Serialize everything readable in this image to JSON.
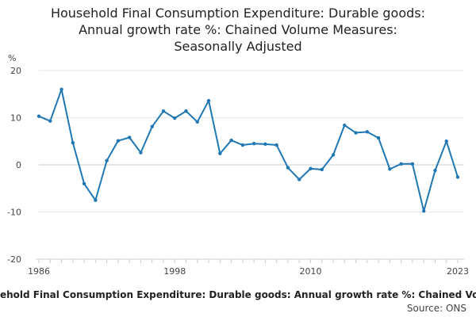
{
  "chart_data": {
    "type": "line",
    "title_lines": [
      "Household Final Consumption Expenditure: Durable goods:",
      "Annual growth rate %: Chained Volume Measures:",
      "Seasonally Adjusted"
    ],
    "ylabel": "%",
    "ylim": [
      -20,
      20
    ],
    "yticks": [
      20,
      10,
      0,
      -10,
      -20
    ],
    "xlim": [
      1986,
      2023
    ],
    "xtick_labels": [
      "1986",
      "1998",
      "2010",
      "2023"
    ],
    "x": [
      1986,
      1987,
      1988,
      1989,
      1990,
      1991,
      1992,
      1993,
      1994,
      1995,
      1996,
      1997,
      1998,
      1999,
      2000,
      2001,
      2002,
      2003,
      2004,
      2005,
      2006,
      2007,
      2008,
      2009,
      2010,
      2011,
      2012,
      2013,
      2014,
      2015,
      2016,
      2017,
      2018,
      2019,
      2020,
      2021,
      2022,
      2023
    ],
    "series": [
      {
        "name": "Household Final Consumption Expenditure: Durable goods: Annual growth rate %: Chained Volume Measures",
        "color": "#1f77b4",
        "values": [
          10.3,
          9.3,
          16.0,
          4.7,
          -4.0,
          -7.5,
          0.9,
          5.1,
          5.8,
          2.6,
          8.1,
          11.4,
          9.9,
          11.4,
          9.1,
          13.6,
          2.4,
          5.2,
          4.2,
          4.5,
          4.4,
          4.2,
          -0.6,
          -3.1,
          -0.8,
          -1.0,
          2.1,
          8.4,
          6.8,
          7.0,
          5.7,
          -0.9,
          0.2,
          0.2,
          -9.8,
          -1.2,
          5.0,
          -2.6
        ]
      }
    ],
    "grid": true
  },
  "caption": "Household Final Consumption Expenditure: Durable goods: Annual growth rate %: Chained Volume Measures",
  "source_label": "Source: ONS"
}
